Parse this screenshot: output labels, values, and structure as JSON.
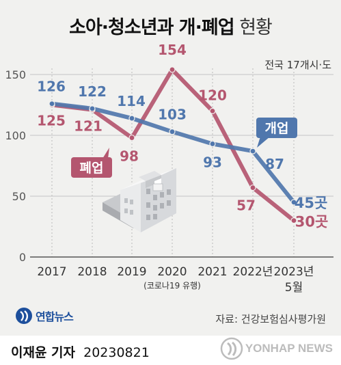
{
  "title": {
    "main": "소아·청소년과 개·폐업",
    "sub": "현황"
  },
  "subtitle": "전국 17개시·도",
  "source": "자료: 건강보험심사평가원",
  "logo": {
    "text": "연합뉴스"
  },
  "footer": {
    "reporter_name": "이재윤 기자",
    "date": "20230821",
    "watermark": "YONHAP NEWS"
  },
  "colors": {
    "opening": "#5077ad",
    "closing": "#b4566f",
    "background": "#f1f1ef"
  },
  "chart_data": {
    "type": "line",
    "title": "소아·청소년과 개·폐업 현황",
    "subtitle": "전국 17개시·도",
    "categories": [
      "2017",
      "2018",
      "2019",
      "2020",
      "2021",
      "2022년",
      "2023년"
    ],
    "category_sublabels": [
      "",
      "",
      "",
      "(코로나19 유행)",
      "",
      "",
      "5월"
    ],
    "ylim": [
      0,
      160
    ],
    "yticks": [
      0,
      50,
      100,
      150
    ],
    "grid": true,
    "series": [
      {
        "name": "개업",
        "values": [
          126,
          122,
          114,
          103,
          93,
          87,
          45
        ],
        "color": "#5077ad",
        "labels": [
          "126",
          "122",
          "114",
          "103",
          "93",
          "87",
          "45곳"
        ]
      },
      {
        "name": "폐업",
        "values": [
          125,
          121,
          98,
          154,
          120,
          57,
          30
        ],
        "color": "#b4566f",
        "labels": [
          "125",
          "121",
          "98",
          "154",
          "120",
          "57",
          "30곳"
        ]
      }
    ]
  }
}
